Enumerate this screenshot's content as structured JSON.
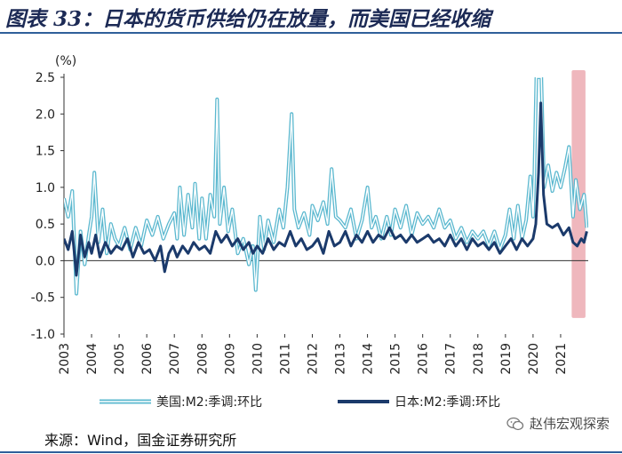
{
  "title": "图表 33：日本的货币供给仍在放量，而美国已经收缩",
  "source": "来源：Wind，国金证券研究所",
  "watermark": "赵伟宏观探索",
  "colors": {
    "us": "#5bb8cf",
    "japan": "#1b3a6b",
    "highlight": "#efb7bd",
    "title": "#1c2a55",
    "rule": "#2f5f9a"
  },
  "chart_data": {
    "type": "line",
    "unit_label": "(%)",
    "ylim": [
      -1.0,
      2.5
    ],
    "yticks": [
      -1.0,
      -0.5,
      0.0,
      0.5,
      1.0,
      1.5,
      2.0,
      2.5
    ],
    "ytick_labels": [
      "-1.0",
      "-0.5",
      "0.0",
      "0.5",
      "1.0",
      "1.5",
      "2.0",
      "2.5"
    ],
    "xlim": [
      2003.0,
      2022.0
    ],
    "xticks": [
      "2003",
      "2004",
      "2005",
      "2006",
      "2007",
      "2008",
      "2009",
      "2010",
      "2011",
      "2012",
      "2013",
      "2014",
      "2015",
      "2016",
      "2017",
      "2018",
      "2019",
      "2020",
      "2021"
    ],
    "highlight_range": [
      2021.4,
      2021.9
    ],
    "series": [
      {
        "name": "美国:M2:季调:环比",
        "style": "double",
        "points": [
          [
            2003.0,
            0.85
          ],
          [
            2003.15,
            0.6
          ],
          [
            2003.3,
            0.95
          ],
          [
            2003.45,
            -0.45
          ],
          [
            2003.6,
            0.4
          ],
          [
            2003.75,
            -0.05
          ],
          [
            2003.9,
            0.35
          ],
          [
            2004.0,
            0.6
          ],
          [
            2004.1,
            1.2
          ],
          [
            2004.25,
            0.25
          ],
          [
            2004.4,
            0.7
          ],
          [
            2004.55,
            0.1
          ],
          [
            2004.7,
            0.5
          ],
          [
            2004.85,
            0.3
          ],
          [
            2005.0,
            0.2
          ],
          [
            2005.2,
            0.45
          ],
          [
            2005.4,
            0.15
          ],
          [
            2005.6,
            0.45
          ],
          [
            2005.8,
            0.2
          ],
          [
            2006.0,
            0.55
          ],
          [
            2006.2,
            0.35
          ],
          [
            2006.4,
            0.6
          ],
          [
            2006.6,
            0.3
          ],
          [
            2006.8,
            0.5
          ],
          [
            2007.0,
            0.65
          ],
          [
            2007.1,
            0.3
          ],
          [
            2007.2,
            1.0
          ],
          [
            2007.35,
            0.35
          ],
          [
            2007.5,
            0.9
          ],
          [
            2007.65,
            0.45
          ],
          [
            2007.75,
            1.05
          ],
          [
            2007.9,
            0.3
          ],
          [
            2008.0,
            0.85
          ],
          [
            2008.15,
            0.3
          ],
          [
            2008.3,
            0.9
          ],
          [
            2008.45,
            0.6
          ],
          [
            2008.55,
            2.2
          ],
          [
            2008.65,
            0.5
          ],
          [
            2008.8,
            1.0
          ],
          [
            2008.95,
            0.4
          ],
          [
            2009.1,
            0.7
          ],
          [
            2009.3,
            0.1
          ],
          [
            2009.5,
            0.3
          ],
          [
            2009.7,
            -0.05
          ],
          [
            2009.85,
            0.2
          ],
          [
            2009.95,
            -0.4
          ],
          [
            2010.1,
            0.6
          ],
          [
            2010.25,
            0.15
          ],
          [
            2010.4,
            0.55
          ],
          [
            2010.6,
            0.25
          ],
          [
            2010.8,
            0.7
          ],
          [
            2010.95,
            0.45
          ],
          [
            2011.1,
            1.0
          ],
          [
            2011.25,
            2.0
          ],
          [
            2011.35,
            0.7
          ],
          [
            2011.5,
            0.45
          ],
          [
            2011.7,
            0.65
          ],
          [
            2011.9,
            0.35
          ],
          [
            2012.0,
            0.75
          ],
          [
            2012.2,
            0.55
          ],
          [
            2012.4,
            0.8
          ],
          [
            2012.55,
            0.5
          ],
          [
            2012.7,
            1.25
          ],
          [
            2012.85,
            0.6
          ],
          [
            2013.0,
            0.55
          ],
          [
            2013.2,
            0.45
          ],
          [
            2013.4,
            0.7
          ],
          [
            2013.6,
            0.3
          ],
          [
            2013.8,
            0.55
          ],
          [
            2014.0,
            1.0
          ],
          [
            2014.15,
            0.45
          ],
          [
            2014.3,
            0.6
          ],
          [
            2014.5,
            0.3
          ],
          [
            2014.7,
            0.6
          ],
          [
            2014.85,
            0.35
          ],
          [
            2015.0,
            0.7
          ],
          [
            2015.2,
            0.45
          ],
          [
            2015.4,
            0.75
          ],
          [
            2015.6,
            0.35
          ],
          [
            2015.8,
            0.65
          ],
          [
            2016.0,
            0.5
          ],
          [
            2016.2,
            0.6
          ],
          [
            2016.4,
            0.45
          ],
          [
            2016.6,
            0.7
          ],
          [
            2016.8,
            0.45
          ],
          [
            2017.0,
            0.55
          ],
          [
            2017.2,
            0.3
          ],
          [
            2017.4,
            0.45
          ],
          [
            2017.6,
            0.25
          ],
          [
            2017.8,
            0.4
          ],
          [
            2018.0,
            0.3
          ],
          [
            2018.2,
            0.4
          ],
          [
            2018.4,
            0.2
          ],
          [
            2018.6,
            0.4
          ],
          [
            2018.8,
            0.15
          ],
          [
            2019.0,
            0.35
          ],
          [
            2019.15,
            0.7
          ],
          [
            2019.3,
            0.3
          ],
          [
            2019.45,
            0.75
          ],
          [
            2019.6,
            0.3
          ],
          [
            2019.75,
            0.55
          ],
          [
            2019.9,
            1.15
          ],
          [
            2020.0,
            0.6
          ],
          [
            2020.05,
            1.2
          ],
          [
            2020.12,
            2.5
          ],
          [
            2020.3,
            2.5
          ],
          [
            2020.4,
            1.0
          ],
          [
            2020.55,
            1.3
          ],
          [
            2020.7,
            0.95
          ],
          [
            2020.85,
            1.2
          ],
          [
            2021.0,
            1.0
          ],
          [
            2021.15,
            1.25
          ],
          [
            2021.3,
            1.55
          ],
          [
            2021.45,
            0.6
          ],
          [
            2021.55,
            1.1
          ],
          [
            2021.7,
            0.7
          ],
          [
            2021.85,
            0.9
          ],
          [
            2021.95,
            0.45
          ]
        ]
      },
      {
        "name": "日本:M2:季调:环比",
        "style": "thick",
        "points": [
          [
            2003.0,
            0.3
          ],
          [
            2003.15,
            0.15
          ],
          [
            2003.3,
            0.4
          ],
          [
            2003.45,
            -0.2
          ],
          [
            2003.6,
            0.35
          ],
          [
            2003.75,
            0.05
          ],
          [
            2003.9,
            0.25
          ],
          [
            2004.0,
            0.1
          ],
          [
            2004.15,
            0.35
          ],
          [
            2004.3,
            0.05
          ],
          [
            2004.5,
            0.25
          ],
          [
            2004.7,
            0.1
          ],
          [
            2004.9,
            0.2
          ],
          [
            2005.1,
            0.15
          ],
          [
            2005.3,
            0.3
          ],
          [
            2005.5,
            0.05
          ],
          [
            2005.7,
            0.25
          ],
          [
            2005.9,
            0.1
          ],
          [
            2006.1,
            0.15
          ],
          [
            2006.3,
            0.0
          ],
          [
            2006.5,
            0.2
          ],
          [
            2006.65,
            -0.15
          ],
          [
            2006.8,
            0.1
          ],
          [
            2006.95,
            0.2
          ],
          [
            2007.1,
            0.05
          ],
          [
            2007.3,
            0.2
          ],
          [
            2007.5,
            0.1
          ],
          [
            2007.7,
            0.25
          ],
          [
            2007.9,
            0.15
          ],
          [
            2008.1,
            0.2
          ],
          [
            2008.3,
            0.1
          ],
          [
            2008.5,
            0.4
          ],
          [
            2008.7,
            0.25
          ],
          [
            2008.9,
            0.35
          ],
          [
            2009.1,
            0.2
          ],
          [
            2009.3,
            0.3
          ],
          [
            2009.5,
            0.15
          ],
          [
            2009.7,
            0.25
          ],
          [
            2009.85,
            0.1
          ],
          [
            2010.0,
            0.2
          ],
          [
            2010.2,
            0.1
          ],
          [
            2010.4,
            0.3
          ],
          [
            2010.6,
            0.15
          ],
          [
            2010.8,
            0.25
          ],
          [
            2011.0,
            0.2
          ],
          [
            2011.2,
            0.4
          ],
          [
            2011.4,
            0.2
          ],
          [
            2011.6,
            0.3
          ],
          [
            2011.8,
            0.15
          ],
          [
            2012.0,
            0.2
          ],
          [
            2012.2,
            0.3
          ],
          [
            2012.4,
            0.1
          ],
          [
            2012.6,
            0.4
          ],
          [
            2012.8,
            0.2
          ],
          [
            2013.0,
            0.25
          ],
          [
            2013.2,
            0.4
          ],
          [
            2013.4,
            0.2
          ],
          [
            2013.6,
            0.35
          ],
          [
            2013.8,
            0.25
          ],
          [
            2014.0,
            0.4
          ],
          [
            2014.2,
            0.25
          ],
          [
            2014.4,
            0.35
          ],
          [
            2014.6,
            0.3
          ],
          [
            2014.8,
            0.45
          ],
          [
            2015.0,
            0.3
          ],
          [
            2015.2,
            0.35
          ],
          [
            2015.4,
            0.25
          ],
          [
            2015.6,
            0.35
          ],
          [
            2015.8,
            0.25
          ],
          [
            2016.0,
            0.3
          ],
          [
            2016.2,
            0.35
          ],
          [
            2016.4,
            0.25
          ],
          [
            2016.6,
            0.3
          ],
          [
            2016.8,
            0.2
          ],
          [
            2017.0,
            0.35
          ],
          [
            2017.2,
            0.2
          ],
          [
            2017.4,
            0.3
          ],
          [
            2017.6,
            0.15
          ],
          [
            2017.8,
            0.3
          ],
          [
            2018.0,
            0.2
          ],
          [
            2018.2,
            0.25
          ],
          [
            2018.4,
            0.15
          ],
          [
            2018.6,
            0.25
          ],
          [
            2018.8,
            0.1
          ],
          [
            2019.0,
            0.2
          ],
          [
            2019.2,
            0.3
          ],
          [
            2019.4,
            0.15
          ],
          [
            2019.6,
            0.3
          ],
          [
            2019.8,
            0.2
          ],
          [
            2020.0,
            0.3
          ],
          [
            2020.1,
            0.5
          ],
          [
            2020.2,
            1.2
          ],
          [
            2020.28,
            2.15
          ],
          [
            2020.38,
            0.9
          ],
          [
            2020.5,
            0.5
          ],
          [
            2020.7,
            0.45
          ],
          [
            2020.9,
            0.5
          ],
          [
            2021.1,
            0.35
          ],
          [
            2021.3,
            0.45
          ],
          [
            2021.45,
            0.25
          ],
          [
            2021.6,
            0.2
          ],
          [
            2021.75,
            0.3
          ],
          [
            2021.85,
            0.25
          ],
          [
            2021.95,
            0.4
          ]
        ]
      }
    ]
  }
}
